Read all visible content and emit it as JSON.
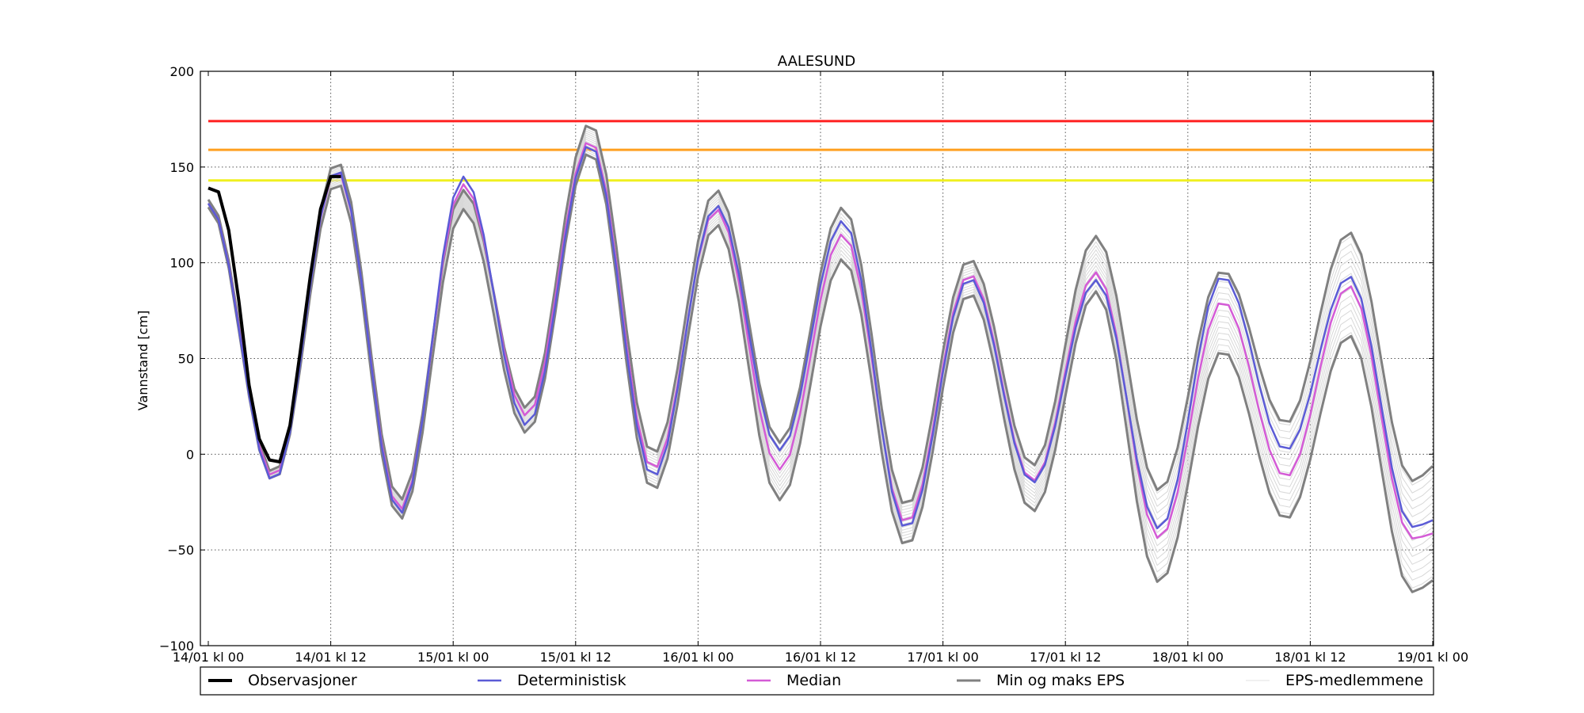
{
  "chart_data": {
    "type": "line",
    "title": "AALESUND",
    "xlabel": "",
    "ylabel": "Vannstand [cm]",
    "xlim": [
      0,
      121
    ],
    "ylim": [
      -100,
      200
    ],
    "grid": true,
    "legend_position": "bottom",
    "x_ticks": [
      {
        "x": 0,
        "label": "14/01 kl 00"
      },
      {
        "x": 12,
        "label": "14/01 kl 12"
      },
      {
        "x": 24,
        "label": "15/01 kl 00"
      },
      {
        "x": 36,
        "label": "15/01 kl 12"
      },
      {
        "x": 48,
        "label": "16/01 kl 00"
      },
      {
        "x": 60,
        "label": "16/01 kl 12"
      },
      {
        "x": 72,
        "label": "17/01 kl 00"
      },
      {
        "x": 84,
        "label": "17/01 kl 12"
      },
      {
        "x": 96,
        "label": "18/01 kl 00"
      },
      {
        "x": 108,
        "label": "18/01 kl 12"
      },
      {
        "x": 120,
        "label": "19/01 kl 00"
      }
    ],
    "y_ticks": [
      -100,
      -50,
      0,
      50,
      100,
      150,
      200
    ],
    "thresholds": [
      {
        "value": 174,
        "color": "#ff2020"
      },
      {
        "value": 159,
        "color": "#ffa020"
      },
      {
        "value": 143,
        "color": "#f0f020"
      }
    ],
    "observations": {
      "name": "Observasjoner",
      "color": "#000000",
      "x": [
        0,
        1,
        2,
        3,
        4,
        5,
        6,
        7,
        8,
        9,
        10,
        11,
        12,
        13
      ],
      "y": [
        139,
        137,
        117,
        80,
        36,
        8,
        -3,
        -4,
        15,
        53,
        93,
        128,
        145,
        145
      ]
    },
    "series": [
      {
        "name": "Deterministisk",
        "color": "#5b5bd6"
      },
      {
        "name": "Median",
        "color": "#d45bd6"
      },
      {
        "name": "Min og maks EPS",
        "color": "#808080"
      },
      {
        "name": "EPS-medlemmene",
        "color": "#d8d8d8"
      }
    ],
    "tide_peaks": {
      "deterministic": [
        -14,
        149,
        -31,
        145,
        15,
        162,
        -12,
        130,
        2,
        122,
        -39,
        92,
        -15,
        91,
        -39,
        93,
        2,
        93,
        -38
      ],
      "median": [
        -12,
        148,
        -29,
        141,
        20,
        164,
        -8,
        128,
        -8,
        115,
        -36,
        94,
        -14,
        95,
        -44,
        80,
        -12,
        88,
        -44
      ],
      "eps_max": [
        -10,
        153,
        -24,
        138,
        24,
        173,
        0,
        138,
        6,
        129,
        -27,
        102,
        -6,
        114,
        -19,
        96,
        16,
        116,
        -14
      ],
      "eps_min": [
        -14,
        142,
        -34,
        128,
        11,
        158,
        -19,
        120,
        -24,
        102,
        -48,
        84,
        -30,
        85,
        -67,
        54,
        -34,
        62,
        -72
      ],
      "final_values": {
        "deterministic": -34,
        "median": -41,
        "eps_max": -5,
        "eps_min": -65
      }
    }
  }
}
